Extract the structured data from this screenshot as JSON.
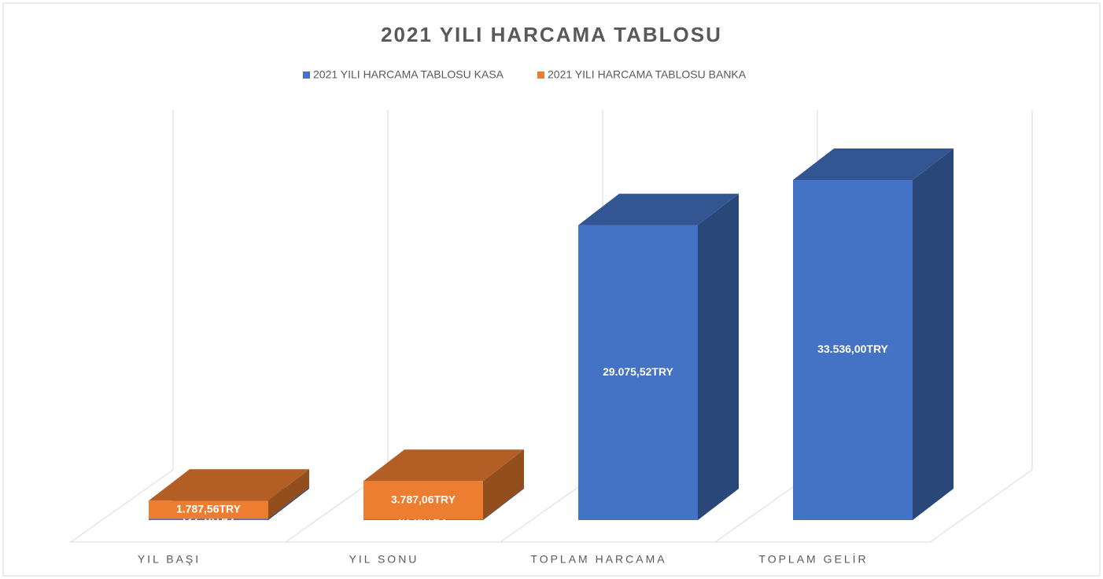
{
  "chart_data": {
    "type": "bar3d",
    "stacked": true,
    "title": "2021 YILI HARCAMA TABLOSU",
    "categories": [
      "YIL BAŞI",
      "YIL SONU",
      "TOPLAM HARCAMA",
      "TOPLAM GELİR"
    ],
    "series": [
      {
        "name": "2021 YILI HARCAMA TABLOSU KASA",
        "color": "#4472c4",
        "values": [
          127.18,
          67.0,
          29075.52,
          33536.0
        ],
        "value_labels": [
          "127,18TRY",
          "67,00TRY",
          "29.075,52TRY",
          "33.536,00TRY"
        ]
      },
      {
        "name": "2021 YILI HARCAMA TABLOSU BANKA",
        "color": "#ed7d31",
        "values": [
          1787.56,
          3787.06,
          null,
          null
        ],
        "value_labels": [
          "1.787,56TRY",
          "3.787,06TRY",
          null,
          null
        ]
      }
    ],
    "legend": "top"
  }
}
